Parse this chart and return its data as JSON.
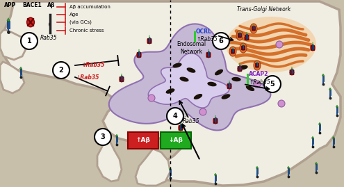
{
  "bg_outer": "#c8bfaa",
  "bg_cell": "#f2efe6",
  "endo_fill": "#c5b8d5",
  "endo_border": "#9878b8",
  "tgn_color": "#e8954a",
  "dotted_line_x": 0.495,
  "legend_labels": [
    "APP",
    "BACE1",
    "Aβ"
  ],
  "stress_texts": [
    "Chronic stress",
    "(via GCs)",
    "Age",
    "Aβ accumulation"
  ],
  "endosomal_label": "Endosomal\nNetwork",
  "tgn_label": "Trans-Golgi Network"
}
